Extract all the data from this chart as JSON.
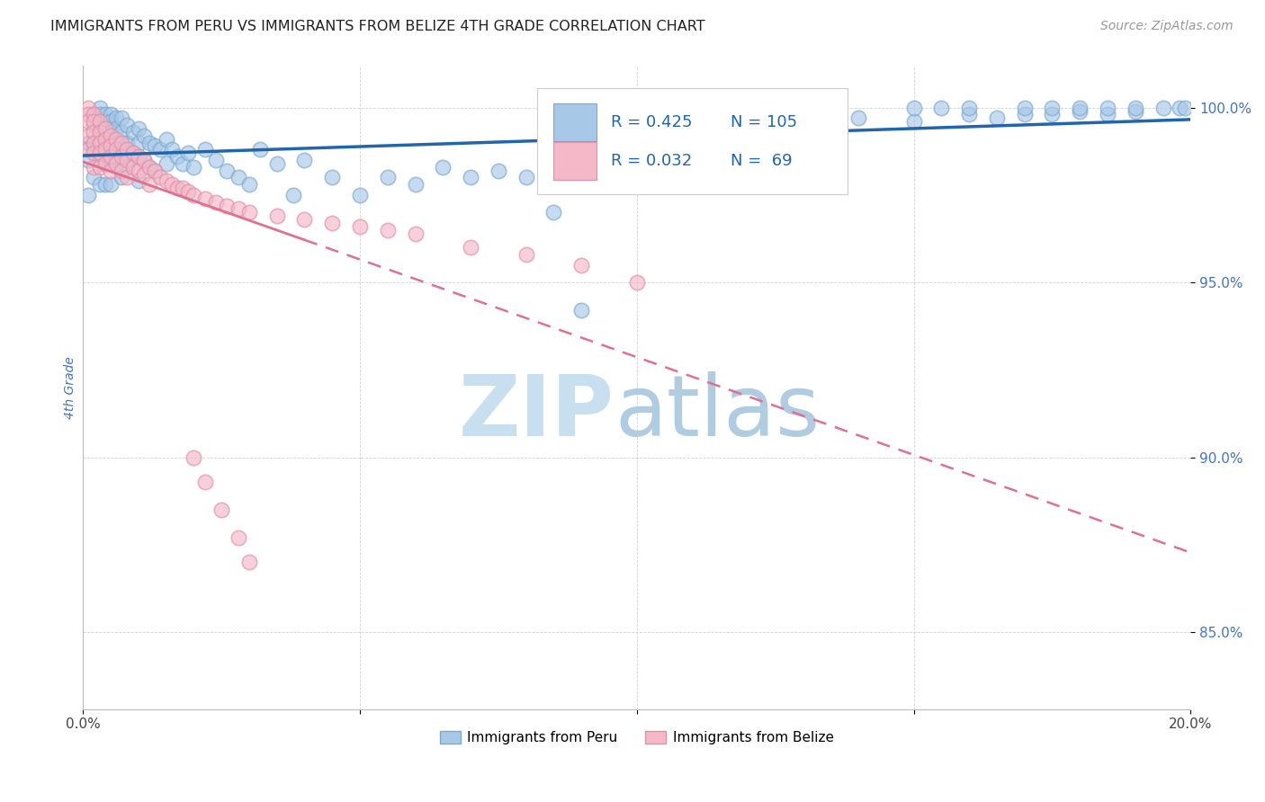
{
  "title": "IMMIGRANTS FROM PERU VS IMMIGRANTS FROM BELIZE 4TH GRADE CORRELATION CHART",
  "source": "Source: ZipAtlas.com",
  "ylabel_text": "4th Grade",
  "x_min": 0.0,
  "x_max": 0.2,
  "y_min": 0.828,
  "y_max": 1.012,
  "y_ticks": [
    0.85,
    0.9,
    0.95,
    1.0
  ],
  "y_tick_labels": [
    "85.0%",
    "90.0%",
    "95.0%",
    "100.0%"
  ],
  "legend_labels": [
    "Immigrants from Peru",
    "Immigrants from Belize"
  ],
  "blue_color": "#a8c8e8",
  "blue_edge_color": "#7aaace",
  "pink_color": "#f4b8c8",
  "pink_edge_color": "#e090a8",
  "blue_line_color": "#2166ac",
  "pink_line_color": "#e07090",
  "watermark_zip_color": "#c8dff0",
  "watermark_atlas_color": "#b0cce0",
  "peru_x": [
    0.001,
    0.001,
    0.001,
    0.002,
    0.002,
    0.002,
    0.002,
    0.002,
    0.003,
    0.003,
    0.003,
    0.003,
    0.003,
    0.003,
    0.003,
    0.004,
    0.004,
    0.004,
    0.004,
    0.004,
    0.004,
    0.004,
    0.005,
    0.005,
    0.005,
    0.005,
    0.005,
    0.005,
    0.005,
    0.006,
    0.006,
    0.006,
    0.006,
    0.007,
    0.007,
    0.007,
    0.007,
    0.007,
    0.008,
    0.008,
    0.008,
    0.009,
    0.009,
    0.01,
    0.01,
    0.01,
    0.01,
    0.011,
    0.011,
    0.012,
    0.012,
    0.013,
    0.013,
    0.014,
    0.015,
    0.015,
    0.016,
    0.017,
    0.018,
    0.019,
    0.02,
    0.022,
    0.024,
    0.026,
    0.028,
    0.03,
    0.032,
    0.035,
    0.038,
    0.04,
    0.045,
    0.05,
    0.055,
    0.06,
    0.065,
    0.07,
    0.075,
    0.08,
    0.085,
    0.09,
    0.095,
    0.1,
    0.11,
    0.12,
    0.13,
    0.14,
    0.15,
    0.16,
    0.165,
    0.17,
    0.175,
    0.18,
    0.185,
    0.19,
    0.15,
    0.155,
    0.16,
    0.17,
    0.175,
    0.18,
    0.185,
    0.19,
    0.195,
    0.198,
    0.199
  ],
  "peru_y": [
    0.99,
    0.985,
    0.975,
    0.998,
    0.995,
    0.99,
    0.988,
    0.98,
    1.0,
    0.998,
    0.995,
    0.993,
    0.99,
    0.985,
    0.978,
    0.998,
    0.996,
    0.993,
    0.99,
    0.988,
    0.984,
    0.978,
    0.998,
    0.996,
    0.993,
    0.99,
    0.988,
    0.984,
    0.978,
    0.997,
    0.994,
    0.99,
    0.985,
    0.997,
    0.993,
    0.99,
    0.987,
    0.98,
    0.995,
    0.99,
    0.983,
    0.993,
    0.987,
    0.994,
    0.99,
    0.986,
    0.979,
    0.992,
    0.985,
    0.99,
    0.983,
    0.989,
    0.982,
    0.988,
    0.991,
    0.984,
    0.988,
    0.986,
    0.984,
    0.987,
    0.983,
    0.988,
    0.985,
    0.982,
    0.98,
    0.978,
    0.988,
    0.984,
    0.975,
    0.985,
    0.98,
    0.975,
    0.98,
    0.978,
    0.983,
    0.98,
    0.982,
    0.98,
    0.97,
    0.942,
    0.982,
    0.98,
    0.992,
    0.998,
    0.995,
    0.997,
    0.996,
    0.998,
    0.997,
    0.998,
    0.998,
    0.999,
    0.998,
    0.999,
    1.0,
    1.0,
    1.0,
    1.0,
    1.0,
    1.0,
    1.0,
    1.0,
    1.0,
    1.0,
    1.0
  ],
  "belize_x": [
    0.001,
    0.001,
    0.001,
    0.001,
    0.001,
    0.002,
    0.002,
    0.002,
    0.002,
    0.002,
    0.002,
    0.003,
    0.003,
    0.003,
    0.003,
    0.003,
    0.004,
    0.004,
    0.004,
    0.004,
    0.005,
    0.005,
    0.005,
    0.005,
    0.006,
    0.006,
    0.006,
    0.007,
    0.007,
    0.007,
    0.008,
    0.008,
    0.008,
    0.009,
    0.009,
    0.01,
    0.01,
    0.011,
    0.011,
    0.012,
    0.012,
    0.013,
    0.014,
    0.015,
    0.016,
    0.017,
    0.018,
    0.019,
    0.02,
    0.022,
    0.024,
    0.026,
    0.028,
    0.03,
    0.035,
    0.04,
    0.045,
    0.05,
    0.055,
    0.06,
    0.07,
    0.08,
    0.09,
    0.1,
    0.02,
    0.022,
    0.025,
    0.028,
    0.03
  ],
  "belize_y": [
    1.0,
    0.998,
    0.996,
    0.992,
    0.988,
    0.998,
    0.996,
    0.993,
    0.99,
    0.987,
    0.983,
    0.996,
    0.993,
    0.99,
    0.987,
    0.983,
    0.994,
    0.991,
    0.988,
    0.984,
    0.992,
    0.989,
    0.986,
    0.982,
    0.991,
    0.988,
    0.984,
    0.99,
    0.986,
    0.982,
    0.988,
    0.985,
    0.98,
    0.987,
    0.983,
    0.986,
    0.982,
    0.985,
    0.981,
    0.983,
    0.978,
    0.982,
    0.98,
    0.979,
    0.978,
    0.977,
    0.977,
    0.976,
    0.975,
    0.974,
    0.973,
    0.972,
    0.971,
    0.97,
    0.969,
    0.968,
    0.967,
    0.966,
    0.965,
    0.964,
    0.96,
    0.958,
    0.955,
    0.95,
    0.9,
    0.893,
    0.885,
    0.877,
    0.87
  ]
}
